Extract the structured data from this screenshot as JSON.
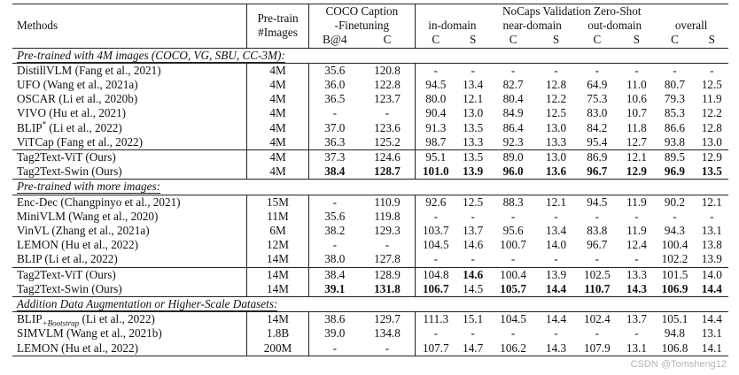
{
  "header": {
    "methods": "Methods",
    "pretrain_1": "Pre-train",
    "pretrain_2": "#Images",
    "coco_1": "COCO Caption",
    "coco_2": "-Finetuning",
    "nocaps": "NoCaps Validation Zero-Shot",
    "in_domain": "in-domain",
    "near_domain": "near-domain",
    "out_domain": "out-domain",
    "overall": "overall",
    "b4": "B@4",
    "c": "C",
    "s": "S"
  },
  "sections": [
    {
      "title": "Pre-trained with 4M images (COCO, VG, SBU, CC-3M):",
      "rows": [
        {
          "name": "DistillVLM (Fang et al., 2021)",
          "img": "4M",
          "b4": "35.6",
          "cc": "120.8",
          "ic": "-",
          "is": "-",
          "nc": "-",
          "ns": "-",
          "oc": "-",
          "os": "-",
          "ac": "-",
          "as": "-"
        },
        {
          "name": "UFO (Wang et al., 2021a)",
          "img": "4M",
          "b4": "36.0",
          "cc": "122.8",
          "ic": "94.5",
          "is": "13.4",
          "nc": "82.7",
          "ns": "12.8",
          "oc": "64.9",
          "os": "11.0",
          "ac": "80.7",
          "as": "12.5"
        },
        {
          "name": "OSCAR (Li et al., 2020b)",
          "img": "4M",
          "b4": "36.5",
          "cc": "123.7",
          "ic": "80.0",
          "is": "12.1",
          "nc": "80.4",
          "ns": "12.2",
          "oc": "75.3",
          "os": "10.6",
          "ac": "79.3",
          "as": "11.9"
        },
        {
          "name": "VIVO (Hu et al., 2021)",
          "img": "4M",
          "b4": "-",
          "cc": "-",
          "ic": "90.4",
          "is": "13.0",
          "nc": "84.9",
          "ns": "12.5",
          "oc": "83.0",
          "os": "10.7",
          "ac": "85.3",
          "as": "12.2"
        },
        {
          "name": "BLIP",
          "sup": "*",
          "name2": " (Li et al., 2022)",
          "img": "4M",
          "b4": "37.0",
          "cc": "123.6",
          "ic": "91.3",
          "is": "13.5",
          "nc": "86.4",
          "ns": "13.0",
          "oc": "84.2",
          "os": "11.8",
          "ac": "86.6",
          "as": "12.8"
        },
        {
          "name": "ViTCap (Fang et al., 2022)",
          "img": "4M",
          "b4": "36.3",
          "cc": "125.2",
          "ic": "98.7",
          "is": "13.3",
          "nc": "92.3",
          "ns": "13.3",
          "oc": "95.4",
          "os": "12.7",
          "ac": "93.8",
          "as": "13.0"
        }
      ],
      "ours": [
        {
          "name": "Tag2Text-ViT (Ours)",
          "img": "4M",
          "b4": "37.3",
          "cc": "124.6",
          "ic": "95.1",
          "is": "13.5",
          "nc": "89.0",
          "ns": "13.0",
          "oc": "86.9",
          "os": "12.1",
          "ac": "89.5",
          "as": "12.9"
        },
        {
          "name": "Tag2Text-Swin (Ours)",
          "img": "4M",
          "b4": "38.4",
          "cc": "128.7",
          "ic": "101.0",
          "is": "13.9",
          "nc": "96.0",
          "ns": "13.6",
          "oc": "96.7",
          "os": "12.9",
          "ac": "96.9",
          "as": "13.5",
          "bold": [
            "b4",
            "cc",
            "ic",
            "is",
            "nc",
            "ns",
            "oc",
            "os",
            "ac",
            "as"
          ]
        }
      ]
    },
    {
      "title": "Pre-trained with more images:",
      "rows": [
        {
          "name": "Enc-Dec (Changpinyo et al., 2021)",
          "img": "15M",
          "b4": "-",
          "cc": "110.9",
          "ic": "92.6",
          "is": "12.5",
          "nc": "88.3",
          "ns": "12.1",
          "oc": "94.5",
          "os": "11.9",
          "ac": "90.2",
          "as": "12.1"
        },
        {
          "name": "MiniVLM (Wang et al., 2020)",
          "img": "11M",
          "b4": "35.6",
          "cc": "119.8",
          "ic": "-",
          "is": "-",
          "nc": "-",
          "ns": "-",
          "oc": "-",
          "os": "-",
          "ac": "-",
          "as": "-"
        },
        {
          "name": "VinVL (Zhang et al., 2021a)",
          "img": "6M",
          "b4": "38.2",
          "cc": "129.3",
          "ic": "103.7",
          "is": "13.7",
          "nc": "95.6",
          "ns": "13.4",
          "oc": "83.8",
          "os": "11.9",
          "ac": "94.3",
          "as": "13.1"
        },
        {
          "name": "LEMON (Hu et al., 2022)",
          "img": "12M",
          "b4": "-",
          "cc": "-",
          "ic": "104.5",
          "is": "14.6",
          "nc": "100.7",
          "ns": "14.0",
          "oc": "96.7",
          "os": "12.4",
          "ac": "100.4",
          "as": "13.8"
        },
        {
          "name": "BLIP (Li et al., 2022)",
          "img": "14M",
          "b4": "38.0",
          "cc": "127.8",
          "ic": "-",
          "is": "-",
          "nc": "-",
          "ns": "-",
          "oc": "-",
          "os": "-",
          "ac": "102.2",
          "as": "13.9"
        }
      ],
      "ours": [
        {
          "name": "Tag2Text-ViT (Ours)",
          "img": "14M",
          "b4": "38.4",
          "cc": "128.9",
          "ic": "104.8",
          "is": "14.6",
          "nc": "100.4",
          "ns": "13.9",
          "oc": "102.5",
          "os": "13.3",
          "ac": "101.5",
          "as": "14.0",
          "bold": [
            "is"
          ]
        },
        {
          "name": "Tag2Text-Swin (Ours)",
          "img": "14M",
          "b4": "39.1",
          "cc": "131.8",
          "ic": "106.7",
          "is": "14.5",
          "nc": "105.7",
          "ns": "14.4",
          "oc": "110.7",
          "os": "14.3",
          "ac": "106.9",
          "as": "14.4",
          "bold": [
            "b4",
            "cc",
            "ic",
            "nc",
            "ns",
            "oc",
            "os",
            "ac",
            "as"
          ]
        }
      ]
    },
    {
      "title": "Addition Data Augmentation or Higher-Scale Datasets:",
      "rows": [
        {
          "name": "BLIP",
          "sub": "+Bootstrap",
          "name2": " (Li et al., 2022)",
          "img": "14M",
          "b4": "38.6",
          "cc": "129.7",
          "ic": "111.3",
          "is": "15.1",
          "nc": "104.5",
          "ns": "14.4",
          "oc": "102.4",
          "os": "13.7",
          "ac": "105.1",
          "as": "14.4"
        },
        {
          "name": "SIMVLM (Wang et al., 2021b)",
          "img": "1.8B",
          "b4": "39.0",
          "cc": "134.8",
          "ic": "-",
          "is": "-",
          "nc": "-",
          "ns": "-",
          "oc": "-",
          "os": "-",
          "ac": "94.8",
          "as": "13.1"
        },
        {
          "name": "LEMON (Hu et al., 2022)",
          "img": "200M",
          "b4": "-",
          "cc": "-",
          "ic": "107.7",
          "is": "14.7",
          "nc": "106.2",
          "ns": "14.3",
          "oc": "107.9",
          "os": "13.1",
          "ac": "106.8",
          "as": "14.1"
        }
      ],
      "ours": []
    }
  ],
  "watermark": "CSDN @Tomsheng12"
}
